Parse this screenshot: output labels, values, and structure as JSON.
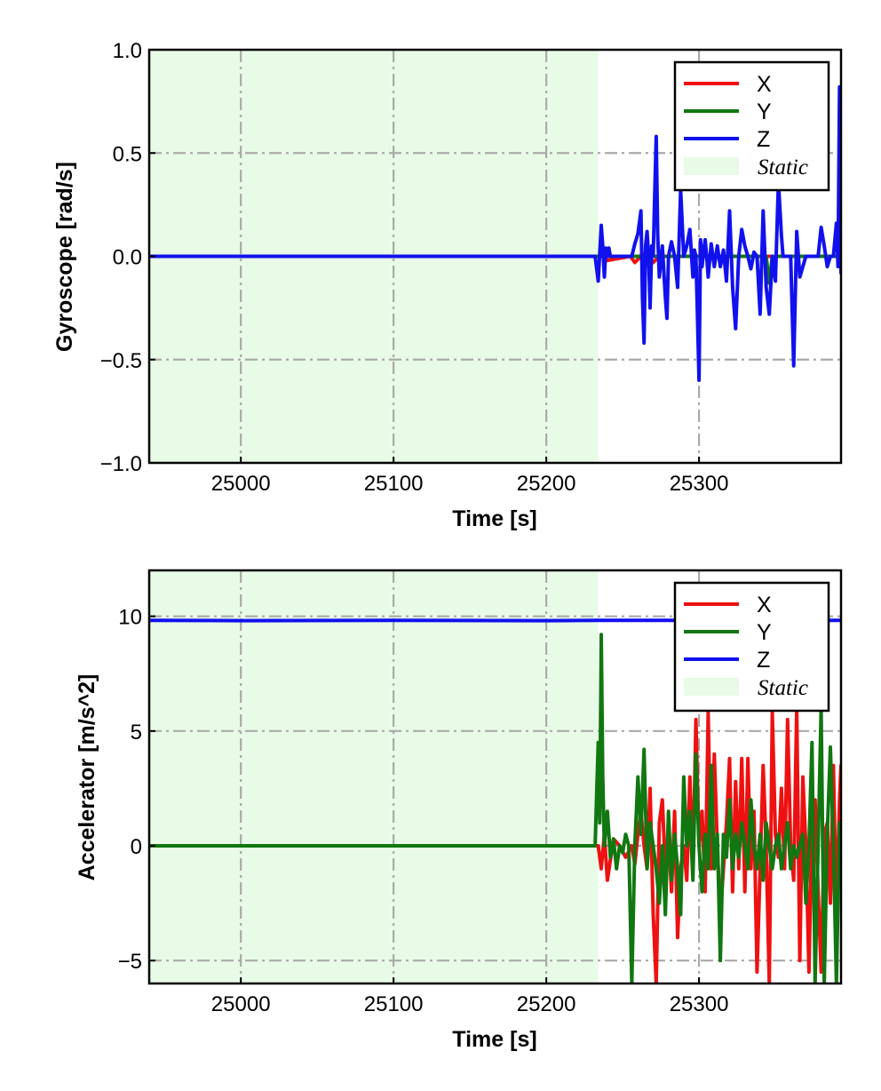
{
  "chart_data": [
    {
      "type": "line",
      "panel": "gyroscope",
      "xlabel": "Time [s]",
      "ylabel": "Gyroscope [rad/s]",
      "xlim": [
        24940,
        25393
      ],
      "ylim": [
        -1.0,
        1.0
      ],
      "x_ticks": [
        25000,
        25100,
        25200,
        25300
      ],
      "x_tick_labels": [
        "25000",
        "25100",
        "25200",
        "25300"
      ],
      "y_ticks": [
        1.0,
        0.5,
        0.0,
        -0.5,
        -1.0
      ],
      "y_tick_labels": [
        "1.0",
        "0.5",
        "0.0",
        "−0.5",
        "−1.0"
      ],
      "grid": true,
      "legend_position": "top-right",
      "static_region": {
        "label": "Static",
        "x_start": 24940,
        "x_end": 25234,
        "color": "#e8fbe6"
      },
      "series": [
        {
          "name": "X",
          "color": "#ee1111",
          "x": [
            24940,
            25234,
            25236,
            25240,
            25255,
            25258,
            25262,
            25266,
            25270,
            25274,
            25280,
            25300,
            25330,
            25360,
            25393
          ],
          "y": [
            0.0,
            0.0,
            0.01,
            -0.02,
            0.0,
            -0.03,
            0.0,
            0.02,
            -0.03,
            0.0,
            0.0,
            0.0,
            0.0,
            0.0,
            0.0
          ]
        },
        {
          "name": "Y",
          "color": "#117711",
          "x": [
            24940,
            25234,
            25240,
            25258,
            25300,
            25330,
            25344,
            25346,
            25348,
            25352,
            25393
          ],
          "y": [
            0.0,
            0.0,
            0.0,
            0.0,
            0.0,
            0.0,
            0.0,
            -0.13,
            0.0,
            0.0,
            0.0
          ]
        },
        {
          "name": "Z",
          "color": "#1111ee",
          "x": [
            24940,
            25232,
            25234,
            25236,
            25237,
            25238,
            25239,
            25240,
            25241,
            25242,
            25256,
            25258,
            25260,
            25262,
            25263,
            25264,
            25265,
            25266,
            25267,
            25268,
            25269,
            25270,
            25271,
            25272,
            25273,
            25274,
            25276,
            25278,
            25279,
            25280,
            25282,
            25284,
            25286,
            25288,
            25290,
            25292,
            25294,
            25296,
            25297,
            25298,
            25299,
            25300,
            25301,
            25302,
            25303,
            25304,
            25305,
            25306,
            25308,
            25310,
            25312,
            25314,
            25316,
            25318,
            25320,
            25322,
            25324,
            25326,
            25328,
            25330,
            25332,
            25334,
            25336,
            25338,
            25340,
            25342,
            25344,
            25346,
            25348,
            25350,
            25352,
            25354,
            25355,
            25356,
            25357,
            25358,
            25360,
            25362,
            25364,
            25366,
            25368,
            25370,
            25372,
            25374,
            25376,
            25378,
            25380,
            25382,
            25384,
            25386,
            25388,
            25390,
            25391,
            25392,
            25393
          ],
          "y": [
            0.0,
            0.0,
            -0.12,
            0.15,
            0.05,
            -0.1,
            0.04,
            0.0,
            0.04,
            0.0,
            0.0,
            0.06,
            0.11,
            0.22,
            -0.2,
            -0.42,
            0.05,
            0.12,
            0.0,
            -0.25,
            0.05,
            0.0,
            0.3,
            0.58,
            0.1,
            -0.1,
            0.05,
            -0.2,
            -0.3,
            0.0,
            0.07,
            0.0,
            -0.15,
            0.32,
            0.0,
            0.05,
            0.13,
            -0.1,
            0.03,
            0.0,
            -0.3,
            -0.6,
            0.08,
            -0.05,
            0.02,
            0.08,
            0.0,
            -0.1,
            0.06,
            -0.05,
            0.05,
            -0.05,
            0.03,
            -0.12,
            0.22,
            -0.15,
            -0.35,
            0.0,
            0.13,
            0.05,
            0.0,
            -0.06,
            0.02,
            0.0,
            -0.28,
            0.22,
            -0.15,
            -0.28,
            0.0,
            -0.12,
            0.36,
            0.1,
            0.0,
            0.0,
            0.0,
            0.0,
            0.0,
            -0.53,
            0.12,
            -0.1,
            -0.05,
            0.0,
            0.0,
            0.0,
            0.0,
            0.0,
            0.14,
            0.05,
            -0.05,
            0.0,
            0.0,
            0.16,
            -0.05,
            0.82,
            -0.08
          ]
        }
      ]
    },
    {
      "type": "line",
      "panel": "accelerometer",
      "xlabel": "Time [s]",
      "ylabel": "Accelerator [m/s^2]",
      "xlim": [
        24940,
        25393
      ],
      "ylim": [
        -6,
        12
      ],
      "x_ticks": [
        25000,
        25100,
        25200,
        25300
      ],
      "x_tick_labels": [
        "25000",
        "25100",
        "25200",
        "25300"
      ],
      "y_ticks": [
        10,
        5,
        0,
        -5
      ],
      "y_tick_labels": [
        "10",
        "5",
        "0",
        "−5"
      ],
      "grid": true,
      "legend_position": "top-right",
      "static_region": {
        "label": "Static",
        "x_start": 24940,
        "x_end": 25234,
        "color": "#e8fbe6"
      },
      "series": [
        {
          "name": "X",
          "color": "#ee1111",
          "x": [
            24940,
            25234,
            25236,
            25238,
            25240,
            25244,
            25248,
            25252,
            25256,
            25258,
            25260,
            25262,
            25264,
            25266,
            25268,
            25270,
            25272,
            25274,
            25276,
            25278,
            25280,
            25282,
            25284,
            25286,
            25288,
            25290,
            25292,
            25294,
            25296,
            25298,
            25300,
            25302,
            25304,
            25306,
            25308,
            25310,
            25312,
            25314,
            25316,
            25318,
            25320,
            25322,
            25324,
            25326,
            25328,
            25330,
            25332,
            25334,
            25336,
            25338,
            25340,
            25342,
            25344,
            25346,
            25348,
            25350,
            25352,
            25354,
            25356,
            25358,
            25360,
            25362,
            25364,
            25366,
            25368,
            25370,
            25372,
            25374,
            25376,
            25378,
            25380,
            25382,
            25384,
            25386,
            25388,
            25390,
            25392,
            25393
          ],
          "y": [
            0.0,
            0.0,
            -1.0,
            0.5,
            -1.5,
            0.3,
            0.0,
            -0.5,
            0.0,
            -0.8,
            0.5,
            1.5,
            0.0,
            -1.0,
            2.5,
            -3.0,
            -6.0,
            1.0,
            2.0,
            -1.0,
            0.5,
            -2.0,
            1.5,
            -4.0,
            -1.0,
            0.0,
            -1.5,
            3.0,
            -1.0,
            5.5,
            0.0,
            1.5,
            -2.0,
            5.8,
            -1.0,
            4.0,
            0.0,
            -3.0,
            -1.0,
            1.0,
            3.8,
            -2.0,
            2.8,
            -1.0,
            3.8,
            -2.0,
            3.8,
            -1.0,
            1.5,
            -5.5,
            -1.0,
            3.5,
            0.0,
            -6.0,
            5.8,
            0.5,
            -0.5,
            2.5,
            -1.0,
            5.5,
            0.0,
            -1.5,
            6.0,
            -5.0,
            3.0,
            0.0,
            -5.5,
            1.0,
            2.0,
            -2.0,
            -5.5,
            0.5,
            1.0,
            -2.5,
            3.5,
            -3.0,
            2.0,
            3.5
          ]
        },
        {
          "name": "Y",
          "color": "#117711",
          "x": [
            24940,
            25232,
            25234,
            25235,
            25236,
            25237,
            25238,
            25240,
            25242,
            25244,
            25246,
            25248,
            25250,
            25252,
            25254,
            25256,
            25258,
            25260,
            25262,
            25264,
            25266,
            25268,
            25270,
            25272,
            25274,
            25276,
            25278,
            25280,
            25282,
            25284,
            25286,
            25288,
            25290,
            25292,
            25294,
            25296,
            25298,
            25300,
            25302,
            25304,
            25306,
            25308,
            25310,
            25312,
            25314,
            25316,
            25318,
            25320,
            25322,
            25324,
            25326,
            25328,
            25330,
            25332,
            25334,
            25336,
            25338,
            25340,
            25342,
            25344,
            25346,
            25348,
            25350,
            25352,
            25354,
            25356,
            25358,
            25360,
            25362,
            25364,
            25366,
            25368,
            25370,
            25372,
            25374,
            25376,
            25378,
            25380,
            25382,
            25384,
            25386,
            25388,
            25390,
            25392,
            25393
          ],
          "y": [
            0.0,
            0.0,
            4.5,
            1.0,
            9.2,
            3.0,
            0.0,
            1.5,
            -0.5,
            0.3,
            -1.0,
            0.0,
            -0.3,
            0.5,
            0.0,
            -6.0,
            0.0,
            3.0,
            0.5,
            4.2,
            -1.0,
            1.0,
            0.0,
            -1.0,
            -2.5,
            0.0,
            -3.0,
            1.5,
            -1.5,
            0.5,
            -1.0,
            -3.0,
            3.0,
            0.0,
            1.5,
            -1.5,
            4.0,
            0.0,
            -2.0,
            0.5,
            -1.0,
            3.5,
            -1.0,
            0.5,
            -5.0,
            0.5,
            -0.5,
            2.0,
            -1.0,
            0.5,
            -0.5,
            1.0,
            0.0,
            -1.0,
            2.0,
            0.0,
            -1.0,
            0.5,
            -1.5,
            1.0,
            0.0,
            -1.0,
            0.0,
            0.5,
            -1.0,
            0.0,
            1.0,
            -1.0,
            0.0,
            -0.5,
            0.0,
            0.5,
            -2.5,
            0.0,
            4.5,
            -6.0,
            0.0,
            6.0,
            -6.0,
            0.5,
            4.3,
            0.0,
            -6.0,
            1.0,
            0.0
          ]
        },
        {
          "name": "Z",
          "color": "#1111ee",
          "x": [
            24940,
            25000,
            25100,
            25200,
            25234,
            25300,
            25380,
            25393
          ],
          "y": [
            9.82,
            9.81,
            9.82,
            9.81,
            9.82,
            9.82,
            9.82,
            9.82
          ]
        }
      ]
    }
  ]
}
